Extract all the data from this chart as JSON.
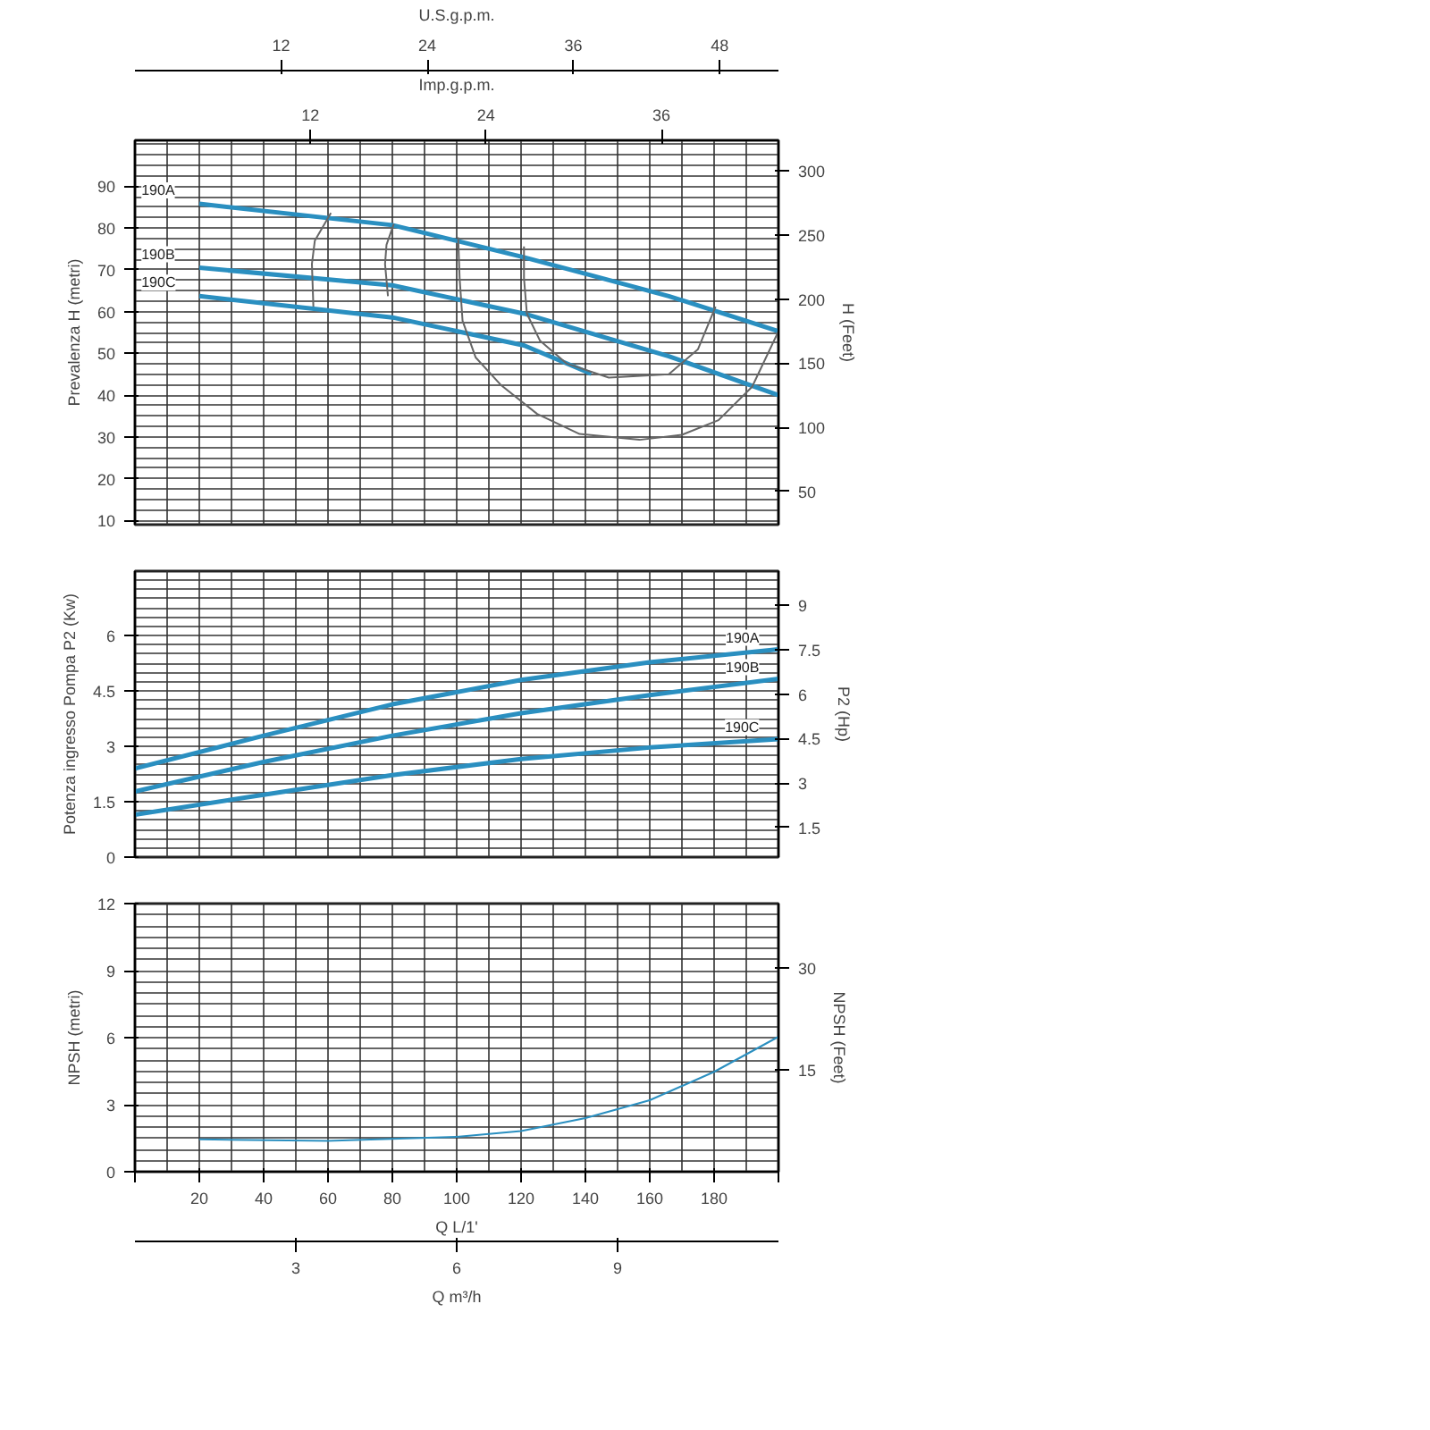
{
  "chart_data": [
    {
      "type": "line",
      "ylabel": "Prevalenza H (metri)",
      "y2label": "H (Feet)",
      "x2label": "U.S.g.p.m.",
      "xlabel": "Imp.g.p.m.",
      "xlim": [
        0,
        44
      ],
      "xticks": [
        12,
        24,
        36
      ],
      "ylim": [
        9,
        101
      ],
      "yticks": [
        10,
        20,
        30,
        40,
        50,
        60,
        70,
        80,
        90
      ],
      "y2lim": [
        24,
        324
      ],
      "y2ticks": [
        50,
        100,
        150,
        200,
        250,
        300
      ],
      "x2lim": [
        0,
        52.83
      ],
      "x2ticks": [
        12,
        24,
        36,
        48
      ],
      "grid": true,
      "series": [
        {
          "name": "190A",
          "color": "#2a8fc0",
          "x": [
            4.4,
            17.6,
            26.6,
            36.5,
            44
          ],
          "values": [
            85.8,
            80.7,
            73,
            63.7,
            55.3
          ]
        },
        {
          "name": "190B",
          "color": "#2a8fc0",
          "x": [
            4.4,
            17.6,
            26.6,
            36.5,
            44
          ],
          "values": [
            70.5,
            66.3,
            59.5,
            49.3,
            40
          ]
        },
        {
          "name": "190C",
          "color": "#2a8fc0",
          "x": [
            4.4,
            17.6,
            26.6,
            31.2
          ],
          "values": [
            63.7,
            58.6,
            51.9,
            45.1
          ]
        },
        {
          "color": "#666666",
          "x": [
            13.4,
            12.3,
            12.1,
            12.2
          ],
          "values": [
            83.6,
            77,
            71.4,
            61.2
          ]
        },
        {
          "color": "#666666",
          "x": [
            17.7,
            17.2,
            17.1,
            17.3
          ],
          "values": [
            81,
            76,
            71.4,
            63.7
          ]
        },
        {
          "color": "#666666",
          "x": [
            22.1,
            22.2,
            22.4,
            23.3,
            25,
            27.5,
            30.4,
            34.5,
            37.4,
            39.9,
            42.2,
            44
          ],
          "values": [
            77.8,
            68,
            57.8,
            49,
            42.5,
            35.5,
            30.7,
            29.3,
            30.5,
            34,
            42,
            55.3
          ]
        },
        {
          "color": "#666666",
          "x": [
            26.6,
            26.6,
            26.8,
            27.7,
            29.5,
            32.4,
            36.5,
            38.5,
            39.7
          ],
          "values": [
            75.6,
            68,
            59.5,
            53,
            47.6,
            44.2,
            45,
            51,
            61.2
          ]
        }
      ]
    },
    {
      "type": "line",
      "ylabel": "Potenza ingresso Pompa P2 (Kw)",
      "y2label": "P2 (Hp)",
      "xlim": [
        0,
        200
      ],
      "xticks": [
        0,
        20,
        40,
        60,
        80,
        100,
        120,
        140,
        160,
        180,
        200
      ],
      "ylim": [
        0,
        7.75
      ],
      "yticks": [
        0,
        1.5,
        3,
        4.5,
        6
      ],
      "y2lim": [
        0.5,
        10.15
      ],
      "y2ticks": [
        1.5,
        3,
        4.5,
        6,
        7.5,
        9
      ],
      "grid": true,
      "tick_labels": "y",
      "series": [
        {
          "name": "190A",
          "color": "#2a8fc0",
          "x": [
            0,
            40,
            80,
            120,
            160,
            200
          ],
          "values": [
            2.4,
            3.29,
            4.14,
            4.8,
            5.28,
            5.63
          ]
        },
        {
          "name": "190B",
          "color": "#2a8fc0",
          "x": [
            0,
            40,
            80,
            120,
            160,
            200
          ],
          "values": [
            1.78,
            2.58,
            3.29,
            3.9,
            4.39,
            4.83
          ]
        },
        {
          "name": "190C",
          "color": "#2a8fc0",
          "x": [
            0,
            40,
            80,
            120,
            160,
            200
          ],
          "values": [
            1.15,
            1.69,
            2.22,
            2.66,
            2.97,
            3.2
          ]
        }
      ]
    },
    {
      "type": "line",
      "ylabel": "NPSH (metri)",
      "y2label": "NPSH (Feet)",
      "xlabel": "Q L/1'",
      "x2label": "Q m³/h",
      "xlim": [
        0,
        200
      ],
      "xticks": [
        {
          "value": 0,
          "label": null
        },
        20,
        40,
        60,
        80,
        100,
        120,
        140,
        160,
        180,
        {
          "value": 200,
          "label": null
        }
      ],
      "ylim": [
        0,
        12
      ],
      "yticks": [
        0,
        3,
        6,
        9,
        12
      ],
      "y2lim": [
        0,
        39.4
      ],
      "y2ticks": [
        15,
        30
      ],
      "x2lim": [
        0,
        12
      ],
      "x2ticks": [
        3,
        6,
        9
      ],
      "grid": true,
      "series": [
        {
          "color": "#2a8fc0",
          "x": [
            20,
            60,
            100,
            120,
            140,
            160,
            180,
            200
          ],
          "values": [
            1.45,
            1.38,
            1.56,
            1.82,
            2.4,
            3.2,
            4.47,
            6.04
          ]
        }
      ]
    }
  ]
}
